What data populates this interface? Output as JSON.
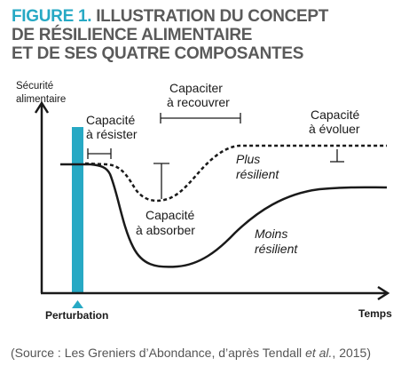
{
  "title": {
    "figure": "FIGURE 1.",
    "line1": "ILLUSTRATION DU CONCEPT",
    "line2": "DE RÉSILIENCE ALIMENTAIRE",
    "line3": "ET DE SES QUATRE COMPOSANTES"
  },
  "axes": {
    "y_label_line1": "Sécurité",
    "y_label_line2": "alimentaire",
    "x_label": "Temps",
    "event_label": "Perturbation"
  },
  "annotations": {
    "resister_1": "Capacité",
    "resister_2": "à résister",
    "recouvrer_1": "Capaciter",
    "recouvrer_2": "à recouvrer",
    "evoluer_1": "Capacité",
    "evoluer_2": "à évoluer",
    "absorber_1": "Capacité",
    "absorber_2": "à absorber",
    "plus_1": "Plus",
    "plus_2": "résilient",
    "moins_1": "Moins",
    "moins_2": "résilient"
  },
  "source": {
    "prefix": "(Source : Les Greniers d’Abondance, d’après Tendall ",
    "etal": "et al.",
    "suffix": ", 2015)"
  },
  "colors": {
    "accent": "#27a9c4",
    "title_gray": "#5a5a5a",
    "ink": "#1a1a1a"
  }
}
